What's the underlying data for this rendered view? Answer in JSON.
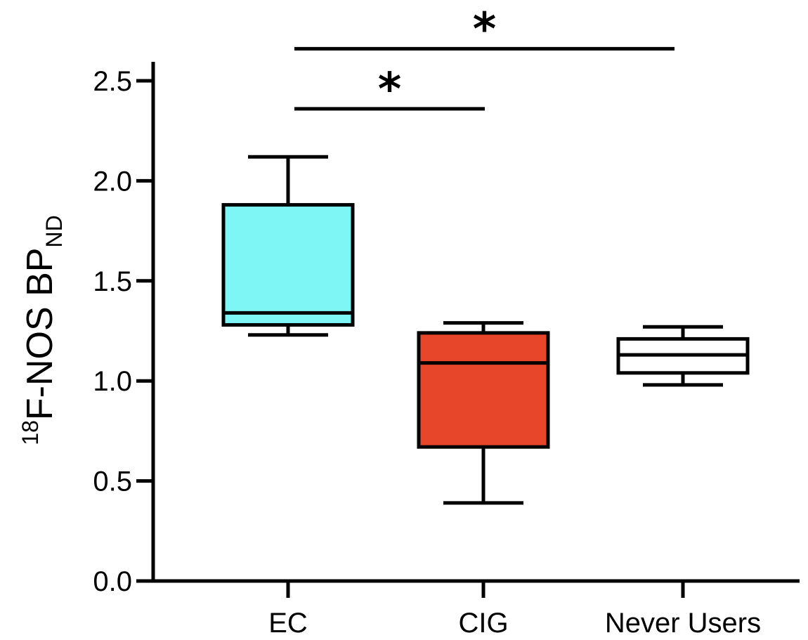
{
  "chart_data": {
    "type": "box",
    "ylabel": {
      "superscript": "18",
      "main": "F-NOS BP",
      "subscript": "ND"
    },
    "ylim": [
      0,
      2.6
    ],
    "yticks": [
      0.0,
      0.5,
      1.0,
      1.5,
      2.0,
      2.5
    ],
    "ytick_labels": [
      "0.0",
      "0.5",
      "1.0",
      "1.5",
      "2.0",
      "2.5"
    ],
    "grid": false,
    "categories": [
      "EC",
      "CIG",
      "Never Users"
    ],
    "boxes": [
      {
        "category": "EC",
        "min": 1.23,
        "q1": 1.28,
        "median": 1.34,
        "q3": 1.88,
        "max": 2.12,
        "color": "#7ef6f6"
      },
      {
        "category": "CIG",
        "min": 0.39,
        "q1": 0.67,
        "median": 1.09,
        "q3": 1.24,
        "max": 1.29,
        "color": "#e8462a"
      },
      {
        "category": "Never Users",
        "min": 0.98,
        "q1": 1.04,
        "median": 1.13,
        "q3": 1.21,
        "max": 1.27,
        "color": "#ffffff"
      }
    ],
    "significance": [
      {
        "from": "EC",
        "to": "CIG",
        "label": "*",
        "level": 2.36
      },
      {
        "from": "EC",
        "to": "Never Users",
        "label": "*",
        "level": 2.66
      }
    ]
  }
}
